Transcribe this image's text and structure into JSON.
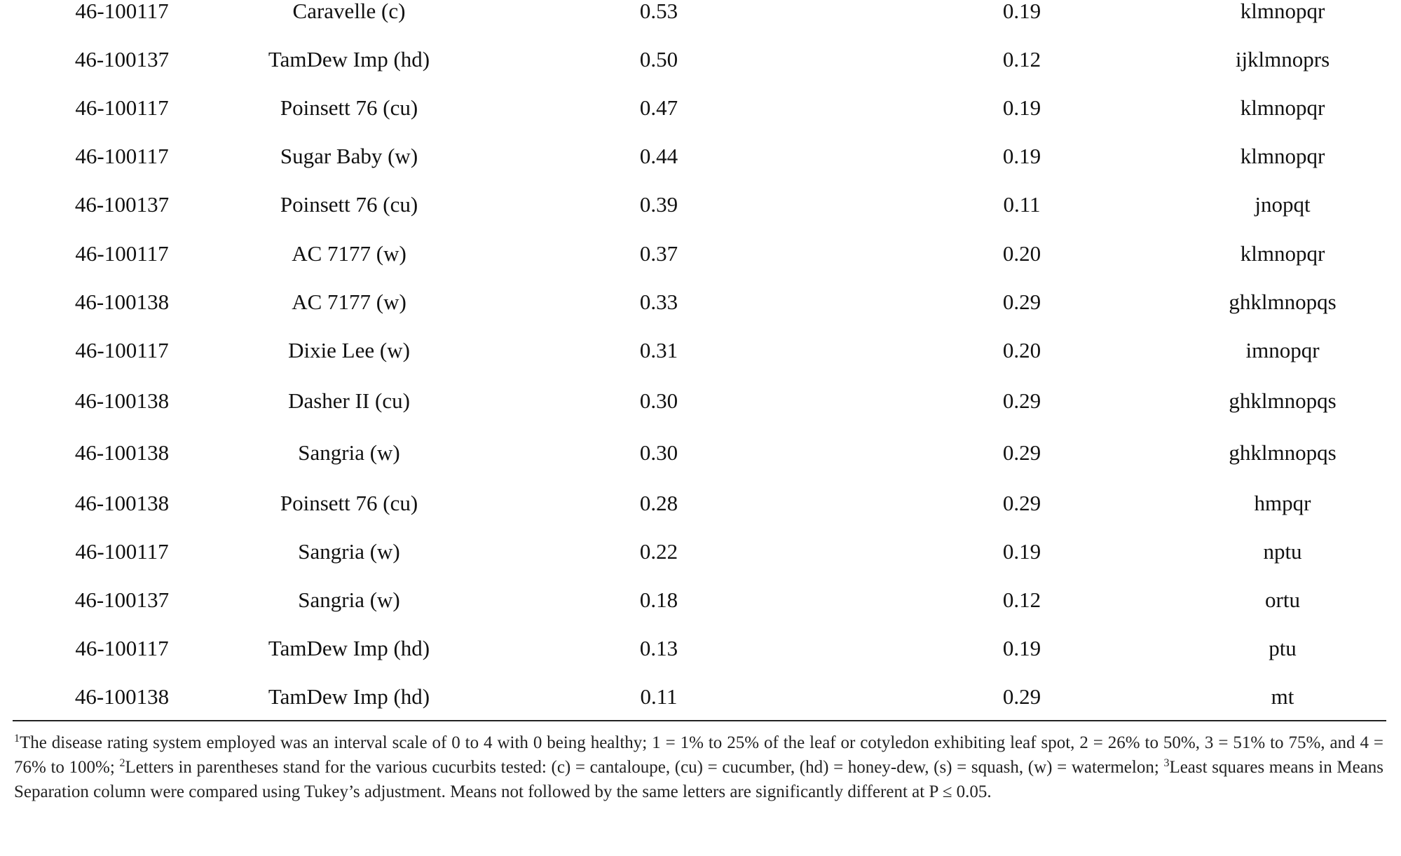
{
  "table": {
    "rows": [
      {
        "isolate": "46-100117",
        "cultivar": "Caravelle (c)",
        "mean": "0.53",
        "se": "0.19",
        "separation": "klmnopqr"
      },
      {
        "isolate": "46-100137",
        "cultivar": "TamDew Imp (hd)",
        "mean": "0.50",
        "se": "0.12",
        "separation": "ijklmnoprs"
      },
      {
        "isolate": "46-100117",
        "cultivar": "Poinsett 76 (cu)",
        "mean": "0.47",
        "se": "0.19",
        "separation": "klmnopqr"
      },
      {
        "isolate": "46-100117",
        "cultivar": "Sugar Baby (w)",
        "mean": "0.44",
        "se": "0.19",
        "separation": "klmnopqr"
      },
      {
        "isolate": "46-100137",
        "cultivar": "Poinsett 76 (cu)",
        "mean": "0.39",
        "se": "0.11",
        "separation": "jnopqt"
      },
      {
        "isolate": "46-100117",
        "cultivar": "AC 7177 (w)",
        "mean": "0.37",
        "se": "0.20",
        "separation": "klmnopqr"
      },
      {
        "isolate": "46-100138",
        "cultivar": "AC 7177 (w)",
        "mean": "0.33",
        "se": "0.29",
        "separation": "ghklmnopqs"
      },
      {
        "isolate": "46-100117",
        "cultivar": "Dixie Lee (w)",
        "mean": "0.31",
        "se": "0.20",
        "separation": "imnopqr"
      },
      {
        "isolate": "46-100138",
        "cultivar": "Dasher II (cu)",
        "mean": "0.30",
        "se": "0.29",
        "separation": "ghklmnopqs"
      },
      {
        "isolate": "46-100138",
        "cultivar": "Sangria (w)",
        "mean": "0.30",
        "se": "0.29",
        "separation": "ghklmnopqs"
      },
      {
        "isolate": "46-100138",
        "cultivar": "Poinsett 76 (cu)",
        "mean": "0.28",
        "se": "0.29",
        "separation": "hmpqr"
      },
      {
        "isolate": "46-100117",
        "cultivar": "Sangria (w)",
        "mean": "0.22",
        "se": "0.19",
        "separation": "nptu"
      },
      {
        "isolate": "46-100137",
        "cultivar": "Sangria (w)",
        "mean": "0.18",
        "se": "0.12",
        "separation": "ortu"
      },
      {
        "isolate": "46-100117",
        "cultivar": "TamDew Imp (hd)",
        "mean": "0.13",
        "se": "0.19",
        "separation": "ptu"
      },
      {
        "isolate": "46-100138",
        "cultivar": "TamDew Imp (hd)",
        "mean": "0.11",
        "se": "0.29",
        "separation": "mt"
      }
    ]
  },
  "footnote": {
    "mark1": "1",
    "text1": "The disease rating system employed was an interval scale of 0 to 4 with 0 being healthy; 1 = 1% to 25% of the leaf or cotyledon exhibiting leaf spot, 2 = 26% to 50%, 3 = 51% to 75%, and 4 = 76% to 100%; ",
    "mark2": "2",
    "text2": "Letters in parentheses stand for the various cucurbits tested: (c) = cantaloupe, (cu) = cucumber, (hd) = honey-dew, (s) = squash, (w) = watermelon; ",
    "mark3": "3",
    "text3": "Least squares means in Means Separation column were compared using Tukey’s adjustment. Means not followed by the same letters are significantly different at P ≤ 0.05."
  }
}
